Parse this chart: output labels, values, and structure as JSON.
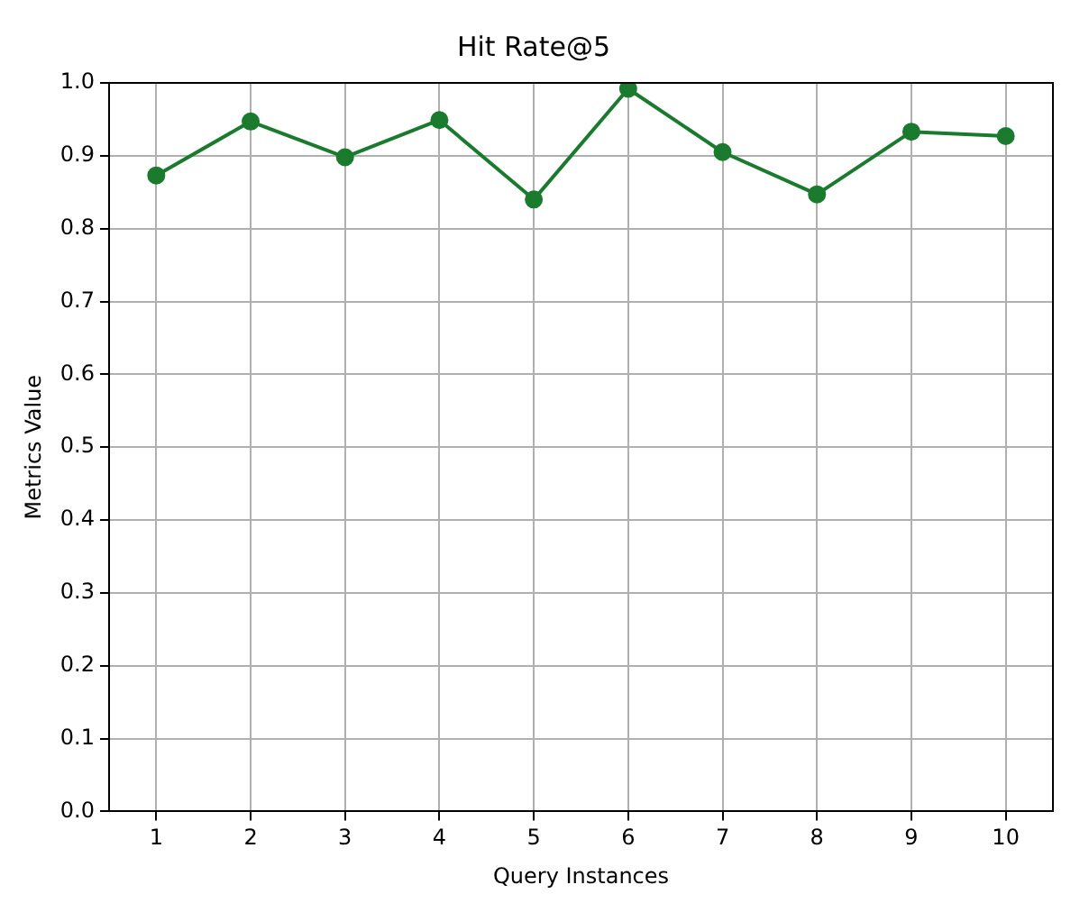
{
  "chart_data": {
    "type": "line",
    "title": "Hit Rate@5",
    "xlabel": "Query Instances",
    "ylabel": "Metrics Value",
    "x": [
      1,
      2,
      3,
      4,
      5,
      6,
      7,
      8,
      9,
      10
    ],
    "series": [
      {
        "color": "#1a7a2e",
        "values": [
          0.873,
          0.947,
          0.898,
          0.949,
          0.84,
          0.992,
          0.905,
          0.847,
          0.933,
          0.927
        ]
      }
    ],
    "xlim": [
      0.5,
      10.5
    ],
    "xticks": [
      1,
      2,
      3,
      4,
      5,
      6,
      7,
      8,
      9,
      10
    ],
    "ylim": [
      0,
      1
    ],
    "yticks": [
      {
        "value": 0,
        "label": "0.0"
      },
      0.1,
      0.2,
      0.3,
      0.4,
      0.5,
      0.6,
      0.7,
      0.8,
      0.9,
      {
        "value": 1,
        "label": "1.0"
      }
    ],
    "grid": true,
    "marker": "circle",
    "line_style": "solid"
  }
}
